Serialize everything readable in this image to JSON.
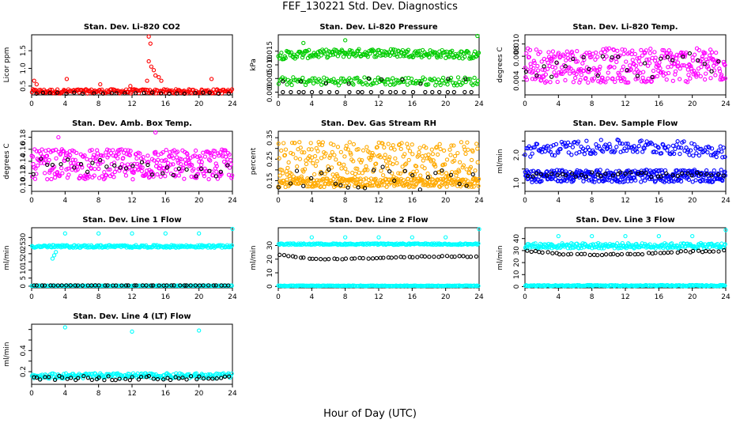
{
  "figure": {
    "title": "FEF_130221  Std. Dev. Diagnostics",
    "xlabel": "Hour of Day (UTC)"
  },
  "chart_data": [
    {
      "type": "scatter",
      "title": "Stan. Dev. Li-820 CO2",
      "ylabel": "Licor ppm",
      "xlim": [
        0,
        24
      ],
      "ylim": [
        0.25,
        1.95
      ],
      "xticks": [
        0,
        4,
        8,
        12,
        16,
        20,
        24
      ],
      "yticks": [
        0.5,
        1.0,
        1.5
      ],
      "ytick_labels": [
        "0.5",
        "1.0",
        "1.5"
      ],
      "series": [
        {
          "color": "#ff0000",
          "pattern": "level",
          "level": 0.35,
          "spread": 0.06,
          "count": 220,
          "extra": [
            [
              0.3,
              0.65
            ],
            [
              0.6,
              0.55
            ],
            [
              4.2,
              0.7
            ],
            [
              14.0,
              1.9
            ],
            [
              14.2,
              1.7
            ],
            [
              14.0,
              1.2
            ],
            [
              14.3,
              1.05
            ],
            [
              14.6,
              0.95
            ],
            [
              14.8,
              0.8
            ],
            [
              15.2,
              0.75
            ],
            [
              15.5,
              0.65
            ],
            [
              13.8,
              0.65
            ],
            [
              21.5,
              0.7
            ],
            [
              8.2,
              0.55
            ],
            [
              11.8,
              0.5
            ]
          ]
        },
        {
          "color": "#000000",
          "pattern": "level",
          "level": 0.3,
          "spread": 0.02,
          "count": 24
        }
      ]
    },
    {
      "type": "scatter",
      "title": "Stan. Dev. Li-820 Pressure",
      "ylabel": "kPa",
      "xlim": [
        0,
        24
      ],
      "ylim": [
        -0.001,
        0.021
      ],
      "xticks": [
        0,
        4,
        8,
        12,
        16,
        20,
        24
      ],
      "yticks": [
        0,
        0.005,
        0.01,
        0.015
      ],
      "ytick_labels": [
        "0.000",
        "0.005",
        "0.010",
        "0.015"
      ],
      "series": [
        {
          "color": "#00cc00",
          "pattern": "arc",
          "level": 0.0135,
          "spread": 0.0015,
          "count": 220,
          "extra": [
            [
              8,
              0.019
            ],
            [
              23.8,
              0.021
            ],
            [
              3,
              0.018
            ]
          ]
        },
        {
          "color": "#00cc00",
          "pattern": "level",
          "level": 0.004,
          "spread": 0.0015,
          "count": 150
        },
        {
          "color": "#000000",
          "pattern": "level",
          "level": 0.0,
          "spread": 0.0,
          "count": 24
        },
        {
          "color": "#000000",
          "pattern": "level",
          "level": 0.004,
          "spread": 0.001,
          "count": 10
        }
      ]
    },
    {
      "type": "scatter",
      "title": "Stan. Dev. Li-820 Temp.",
      "ylabel": "degrees C",
      "xlim": [
        0,
        24
      ],
      "ylim": [
        0.0017,
        0.0115
      ],
      "xticks": [
        0,
        4,
        8,
        12,
        16,
        20,
        24
      ],
      "yticks": [
        0.004,
        0.006,
        0.008,
        0.01
      ],
      "ytick_labels": [
        "0.004",
        "",
        "0.008",
        "0.010"
      ],
      "series": [
        {
          "color": "#ff00ff",
          "pattern": "level",
          "level": 0.0065,
          "spread": 0.0028,
          "count": 360
        },
        {
          "color": "#000000",
          "pattern": "level",
          "level": 0.0065,
          "spread": 0.002,
          "count": 26
        }
      ]
    },
    {
      "type": "scatter",
      "title": "Stan. Dev. Amb. Box Temp.",
      "ylabel": "degrees C",
      "xlim": [
        0,
        24
      ],
      "ylim": [
        0.09,
        0.19
      ],
      "xticks": [
        0,
        4,
        8,
        12,
        16,
        20,
        24
      ],
      "yticks": [
        0.1,
        0.12,
        0.14,
        0.16,
        0.18
      ],
      "ytick_labels": [
        "0.10",
        "0.12",
        "0.14",
        "0.16",
        "0.18"
      ],
      "series": [
        {
          "color": "#ff00ff",
          "pattern": "level",
          "level": 0.135,
          "spread": 0.025,
          "count": 360,
          "extra": [
            [
              14.8,
              0.19
            ],
            [
              3.2,
              0.18
            ]
          ]
        },
        {
          "color": "#000000",
          "pattern": "level",
          "level": 0.13,
          "spread": 0.015,
          "count": 30
        }
      ]
    },
    {
      "type": "scatter",
      "title": "Stan. Dev. Gas Stream RH",
      "ylabel": "percent",
      "xlim": [
        0,
        24
      ],
      "ylim": [
        0.1,
        0.38
      ],
      "xticks": [
        0,
        4,
        8,
        12,
        16,
        20,
        24
      ],
      "yticks": [
        0.15,
        0.2,
        0.25,
        0.3,
        0.35
      ],
      "ytick_labels": [
        "0.15",
        "",
        "0.25",
        "",
        "0.35"
      ],
      "series": [
        {
          "color": "#ffaa00",
          "pattern": "level",
          "level": 0.14,
          "spread": 0.02,
          "count": 260
        },
        {
          "color": "#ffaa00",
          "pattern": "level",
          "level": 0.24,
          "spread": 0.09,
          "count": 280
        },
        {
          "color": "#000000",
          "pattern": "level",
          "level": 0.16,
          "spread": 0.06,
          "count": 26
        }
      ]
    },
    {
      "type": "scatter",
      "title": "Stan. Dev. Sample Flow",
      "ylabel": "ml/min",
      "xlim": [
        0,
        24
      ],
      "ylim": [
        0.7,
        2.85
      ],
      "xticks": [
        0,
        4,
        8,
        12,
        16,
        20,
        24
      ],
      "yticks": [
        1.0,
        1.5,
        2.0,
        2.5
      ],
      "ytick_labels": [
        "1.0",
        "",
        "2.0",
        ""
      ],
      "series": [
        {
          "color": "#0000ff",
          "pattern": "arc",
          "level": 2.15,
          "spread": 0.25,
          "count": 170
        },
        {
          "color": "#0000ff",
          "pattern": "level",
          "level": 1.25,
          "spread": 0.22,
          "count": 340
        },
        {
          "color": "#000000",
          "pattern": "level",
          "level": 1.3,
          "spread": 0.08,
          "count": 40
        }
      ]
    },
    {
      "type": "scatter",
      "title": "Stan. Dev. Line 1 Flow",
      "ylabel": "ml/min",
      "xlim": [
        0,
        24
      ],
      "ylim": [
        -1,
        36
      ],
      "xticks": [
        0,
        4,
        8,
        12,
        16,
        20,
        24
      ],
      "yticks": [
        0,
        5,
        10,
        15,
        20,
        25,
        30
      ],
      "ytick_labels": [
        "0",
        "5",
        "10",
        "15",
        "20",
        "25",
        "30"
      ],
      "series": [
        {
          "color": "#00ffff",
          "pattern": "level",
          "level": 24.5,
          "spread": 0.8,
          "count": 220,
          "extra": [
            [
              4,
              32.5
            ],
            [
              8,
              32.5
            ],
            [
              12,
              32.5
            ],
            [
              16,
              32.5
            ],
            [
              20,
              32.5
            ],
            [
              24,
              35.5
            ],
            [
              2.5,
              17
            ],
            [
              2.7,
              19
            ],
            [
              2.9,
              21
            ]
          ]
        },
        {
          "color": "#00ffff",
          "pattern": "level",
          "level": 0.3,
          "spread": 0.1,
          "count": 160
        },
        {
          "color": "#000000",
          "pattern": "level",
          "level": 0.5,
          "spread": 0.05,
          "count": 48
        }
      ]
    },
    {
      "type": "scatter",
      "title": "Stan. Dev. Line 2 Flow",
      "ylabel": "ml/min",
      "xlim": [
        0,
        24
      ],
      "ylim": [
        -1,
        43
      ],
      "xticks": [
        0,
        4,
        8,
        12,
        16,
        20,
        24
      ],
      "yticks": [
        0,
        10,
        20,
        30
      ],
      "ytick_labels": [
        "0",
        "10",
        "20",
        "30"
      ],
      "series": [
        {
          "color": "#00ffff",
          "pattern": "level",
          "level": 31,
          "spread": 0.5,
          "count": 200,
          "extra": [
            [
              4,
              36
            ],
            [
              8,
              36
            ],
            [
              12,
              36
            ],
            [
              16,
              36
            ],
            [
              20,
              36
            ],
            [
              24,
              42
            ]
          ]
        },
        {
          "color": "#00ffff",
          "pattern": "level",
          "level": 0.5,
          "spread": 0.2,
          "count": 200
        },
        {
          "color": "#000000",
          "pattern": "trend",
          "level": 21,
          "spread": 0.4,
          "count": 48,
          "trend": [
            23,
            20,
            20.5,
            21.5,
            22,
            22
          ]
        }
      ]
    },
    {
      "type": "scatter",
      "title": "Stan. Dev. Line 3 Flow",
      "ylabel": "ml/min",
      "xlim": [
        0,
        24
      ],
      "ylim": [
        -1,
        49
      ],
      "xticks": [
        0,
        4,
        8,
        12,
        16,
        20,
        24
      ],
      "yticks": [
        0,
        10,
        20,
        30,
        40
      ],
      "ytick_labels": [
        "0",
        "10",
        "20",
        "30",
        "40"
      ],
      "series": [
        {
          "color": "#00ffff",
          "pattern": "level",
          "level": 34,
          "spread": 2.2,
          "count": 240,
          "extra": [
            [
              4,
              42
            ],
            [
              8,
              42
            ],
            [
              12,
              42
            ],
            [
              16,
              42
            ],
            [
              20,
              42
            ],
            [
              24,
              47
            ]
          ]
        },
        {
          "color": "#00ffff",
          "pattern": "level",
          "level": 0.8,
          "spread": 0.5,
          "count": 200
        },
        {
          "color": "#000000",
          "pattern": "trend",
          "level": 28,
          "spread": 0.6,
          "count": 48,
          "trend": [
            30,
            27,
            26.5,
            27.5,
            29,
            30
          ]
        }
      ]
    },
    {
      "type": "scatter",
      "title": "Stan. Dev. Line 4 (LT) Flow",
      "ylabel": "ml/min",
      "xlim": [
        0,
        24
      ],
      "ylim": [
        0.08,
        0.65
      ],
      "xticks": [
        0,
        4,
        8,
        12,
        16,
        20,
        24
      ],
      "yticks": [
        0.2,
        0.3,
        0.4,
        0.5,
        0.6
      ],
      "ytick_labels": [
        "0.2",
        "",
        "0.4",
        "",
        ""
      ],
      "series": [
        {
          "color": "#00ffff",
          "pattern": "level",
          "level": 0.16,
          "spread": 0.025,
          "count": 220,
          "extra": [
            [
              4,
              0.62
            ],
            [
              12,
              0.58
            ],
            [
              20,
              0.59
            ]
          ]
        },
        {
          "color": "#000000",
          "pattern": "level",
          "level": 0.14,
          "spread": 0.02,
          "count": 48
        }
      ]
    }
  ]
}
